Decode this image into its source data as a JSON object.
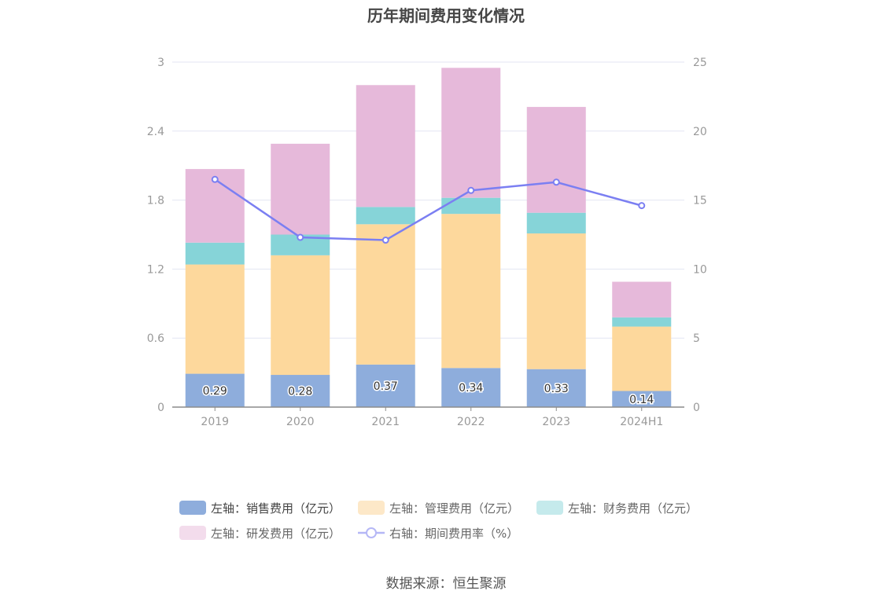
{
  "title": "历年期间费用变化情况",
  "source": "数据来源：恒生聚源",
  "colors": {
    "sales": "#8eaddc",
    "admin": "#fdd89c",
    "finance": "#86d4d8",
    "rd": "#e6b9da",
    "rate": "#7b7ff2",
    "grid": "#e3e6f3",
    "axis": "#999999"
  },
  "legend": [
    {
      "label": "左轴：销售费用（亿元）",
      "icon": "swatch",
      "color": "#8eaddc"
    },
    {
      "label": "左轴：管理费用（亿元）",
      "icon": "swatch",
      "color": "#fde8c8"
    },
    {
      "label": "左轴：财务费用（亿元）",
      "icon": "swatch",
      "color": "#c5eaec"
    },
    {
      "label": "左轴：研发费用（亿元）",
      "icon": "swatch",
      "color": "#f3dcec"
    },
    {
      "label": "右轴：期间费用率（%）",
      "icon": "line-circle",
      "color": "#b5b7f6"
    }
  ],
  "chart_data": {
    "type": "bar",
    "stacked": true,
    "categories": [
      "2019",
      "2020",
      "2021",
      "2022",
      "2023",
      "2024H1"
    ],
    "series": [
      {
        "name": "左轴：销售费用（亿元）",
        "axis": "left",
        "values": [
          0.29,
          0.28,
          0.37,
          0.34,
          0.33,
          0.14
        ],
        "labels": [
          "0.29",
          "0.28",
          "0.37",
          "0.34",
          "0.33",
          "0.14"
        ]
      },
      {
        "name": "左轴：管理费用（亿元）",
        "axis": "left",
        "values": [
          0.95,
          1.04,
          1.22,
          1.34,
          1.18,
          0.56
        ]
      },
      {
        "name": "左轴：财务费用（亿元）",
        "axis": "left",
        "values": [
          0.19,
          0.18,
          0.15,
          0.14,
          0.18,
          0.08
        ]
      },
      {
        "name": "左轴：研发费用（亿元）",
        "axis": "left",
        "values": [
          0.64,
          0.79,
          1.06,
          1.13,
          0.92,
          0.31
        ]
      },
      {
        "name": "右轴：期间费用率（%）",
        "axis": "right",
        "type": "line",
        "values": [
          16.5,
          12.3,
          12.1,
          15.7,
          16.3,
          14.6
        ]
      }
    ],
    "y_left": {
      "ticks": [
        "0",
        "0.6",
        "1.2",
        "1.8",
        "2.4",
        "3"
      ],
      "ylim": [
        0,
        3
      ]
    },
    "y_right": {
      "ticks": [
        "0",
        "5",
        "10",
        "15",
        "20",
        "25"
      ],
      "ylim": [
        0,
        25
      ]
    },
    "grid": true,
    "legend_position": "bottom"
  }
}
